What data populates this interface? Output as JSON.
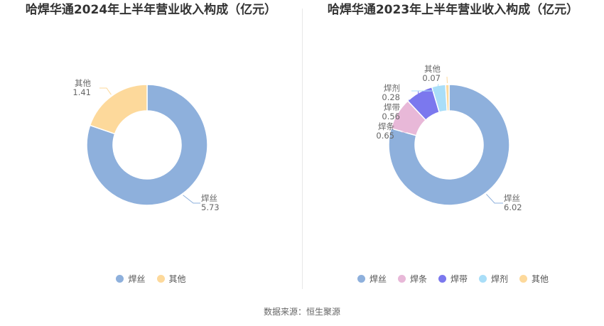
{
  "chart_data": [
    {
      "type": "pie",
      "title": "哈焊华通2024年上半年营业收入构成（亿元）",
      "slices": [
        {
          "name": "焊丝",
          "value": 5.73,
          "value_label": "5.73",
          "color": "#8eb0dc"
        },
        {
          "name": "其他",
          "value": 1.41,
          "value_label": "1.41",
          "color": "#fdd99b"
        }
      ],
      "legend": [
        "焊丝",
        "其他"
      ],
      "legend_position": "bottom"
    },
    {
      "type": "pie",
      "title": "哈焊华通2023年上半年营业收入构成（亿元）",
      "slices": [
        {
          "name": "焊丝",
          "value": 6.02,
          "value_label": "6.02",
          "color": "#8eb0dc"
        },
        {
          "name": "焊条",
          "value": 0.65,
          "value_label": "0.65",
          "color": "#e8b8d8"
        },
        {
          "name": "焊带",
          "value": 0.56,
          "value_label": "0.56",
          "color": "#7b78ee"
        },
        {
          "name": "焊剂",
          "value": 0.28,
          "value_label": "0.28",
          "color": "#a9def8"
        },
        {
          "name": "其他",
          "value": 0.07,
          "value_label": "0.07",
          "color": "#fdd99b"
        }
      ],
      "legend": [
        "焊丝",
        "焊条",
        "焊带",
        "焊剂",
        "其他"
      ],
      "legend_position": "bottom"
    }
  ],
  "source": "数据来源：恒生聚源"
}
